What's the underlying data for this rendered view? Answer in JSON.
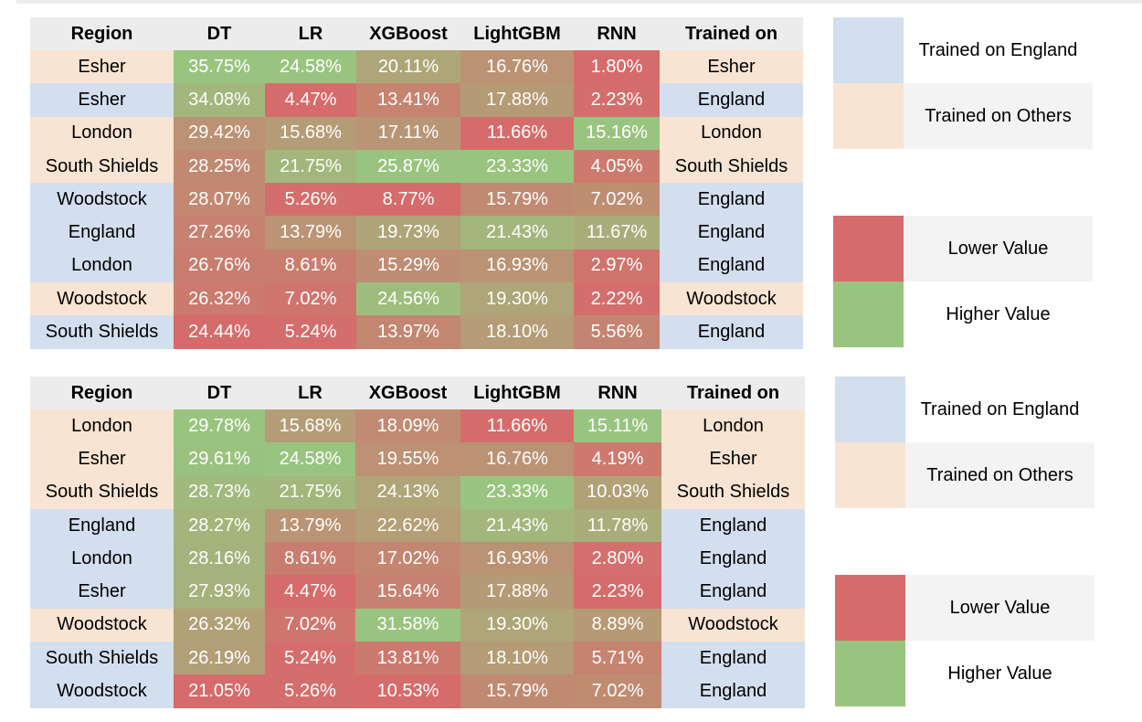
{
  "columns": [
    "Region",
    "DT",
    "LR",
    "XGBoost",
    "LightGBM",
    "RNN",
    "Trained on"
  ],
  "colors": {
    "england": "#d3dfef",
    "others": "#f8e4d2",
    "low": "#d66b6b",
    "high": "#99c47f",
    "header": "#ececec"
  },
  "tables": [
    {
      "rows": [
        {
          "region": "Esher",
          "trained": "Esher",
          "group": "others",
          "values": [
            "35.75%",
            "24.58%",
            "20.11%",
            "16.76%",
            "1.80%"
          ]
        },
        {
          "region": "Esher",
          "trained": "England",
          "group": "england",
          "values": [
            "34.08%",
            "4.47%",
            "13.41%",
            "17.88%",
            "2.23%"
          ]
        },
        {
          "region": "London",
          "trained": "London",
          "group": "others",
          "values": [
            "29.42%",
            "15.68%",
            "17.11%",
            "11.66%",
            "15.16%"
          ]
        },
        {
          "region": "South Shields",
          "trained": "South Shields",
          "group": "others",
          "values": [
            "28.25%",
            "21.75%",
            "25.87%",
            "23.33%",
            "4.05%"
          ]
        },
        {
          "region": "Woodstock",
          "trained": "England",
          "group": "england",
          "values": [
            "28.07%",
            "5.26%",
            "8.77%",
            "15.79%",
            "7.02%"
          ]
        },
        {
          "region": "England",
          "trained": "England",
          "group": "england",
          "values": [
            "27.26%",
            "13.79%",
            "19.73%",
            "21.43%",
            "11.67%"
          ]
        },
        {
          "region": "London",
          "trained": "England",
          "group": "england",
          "values": [
            "26.76%",
            "8.61%",
            "15.29%",
            "16.93%",
            "2.97%"
          ]
        },
        {
          "region": "Woodstock",
          "trained": "Woodstock",
          "group": "others",
          "values": [
            "26.32%",
            "7.02%",
            "24.56%",
            "19.30%",
            "2.22%"
          ]
        },
        {
          "region": "South Shields",
          "trained": "England",
          "group": "england",
          "values": [
            "24.44%",
            "5.24%",
            "13.97%",
            "18.10%",
            "5.56%"
          ]
        }
      ]
    },
    {
      "rows": [
        {
          "region": "London",
          "trained": "London",
          "group": "others",
          "values": [
            "29.78%",
            "15.68%",
            "18.09%",
            "11.66%",
            "15.11%"
          ]
        },
        {
          "region": "Esher",
          "trained": "Esher",
          "group": "others",
          "values": [
            "29.61%",
            "24.58%",
            "19.55%",
            "16.76%",
            "4.19%"
          ]
        },
        {
          "region": "South Shields",
          "trained": "South Shields",
          "group": "others",
          "values": [
            "28.73%",
            "21.75%",
            "24.13%",
            "23.33%",
            "10.03%"
          ]
        },
        {
          "region": "England",
          "trained": "England",
          "group": "england",
          "values": [
            "28.27%",
            "13.79%",
            "22.62%",
            "21.43%",
            "11.78%"
          ]
        },
        {
          "region": "London",
          "trained": "England",
          "group": "england",
          "values": [
            "28.16%",
            "8.61%",
            "17.02%",
            "16.93%",
            "2.80%"
          ]
        },
        {
          "region": "Esher",
          "trained": "England",
          "group": "england",
          "values": [
            "27.93%",
            "4.47%",
            "15.64%",
            "17.88%",
            "2.23%"
          ]
        },
        {
          "region": "Woodstock",
          "trained": "Woodstock",
          "group": "others",
          "values": [
            "26.32%",
            "7.02%",
            "31.58%",
            "19.30%",
            "8.89%"
          ]
        },
        {
          "region": "South Shields",
          "trained": "England",
          "group": "england",
          "values": [
            "26.19%",
            "5.24%",
            "13.81%",
            "18.10%",
            "5.71%"
          ]
        },
        {
          "region": "Woodstock",
          "trained": "England",
          "group": "england",
          "values": [
            "21.05%",
            "5.26%",
            "10.53%",
            "15.79%",
            "7.02%"
          ]
        }
      ]
    }
  ],
  "legend": {
    "england_label": "Trained on England",
    "others_label": "Trained on Others",
    "low_label": "Lower Value",
    "high_label": "Higher Value"
  }
}
